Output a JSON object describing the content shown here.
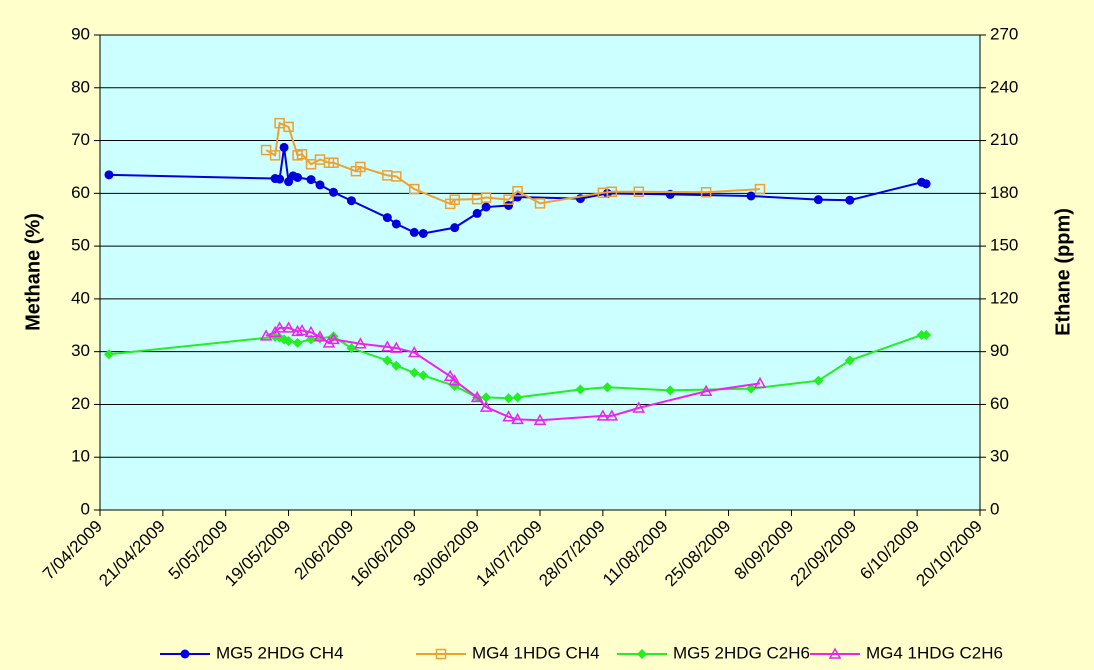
{
  "chart_data": {
    "type": "line",
    "xlim": [
      "2009-04-07",
      "2009-10-20"
    ],
    "xticks": [
      {
        "value": "2009-04-07",
        "label": "7/04/2009"
      },
      {
        "value": "2009-04-21",
        "label": "21/04/2009"
      },
      {
        "value": "2009-05-05",
        "label": "5/05/2009"
      },
      {
        "value": "2009-05-19",
        "label": "19/05/2009"
      },
      {
        "value": "2009-06-02",
        "label": "2/06/2009"
      },
      {
        "value": "2009-06-16",
        "label": "16/06/2009"
      },
      {
        "value": "2009-06-30",
        "label": "30/06/2009"
      },
      {
        "value": "2009-07-14",
        "label": "14/07/2009"
      },
      {
        "value": "2009-07-28",
        "label": "28/07/2009"
      },
      {
        "value": "2009-08-11",
        "label": "11/08/2009"
      },
      {
        "value": "2009-08-25",
        "label": "25/08/2009"
      },
      {
        "value": "2009-09-08",
        "label": "8/09/2009"
      },
      {
        "value": "2009-09-22",
        "label": "22/09/2009"
      },
      {
        "value": "2009-10-06",
        "label": "6/10/2009"
      },
      {
        "value": "2009-10-20",
        "label": "20/10/2009"
      }
    ],
    "ylabel": "Methane (%)",
    "ylim": [
      0,
      90
    ],
    "yticks": [
      0,
      10,
      20,
      30,
      40,
      50,
      60,
      70,
      80,
      90
    ],
    "y2label": "Ethane (ppm)",
    "y2lim": [
      0,
      270
    ],
    "y2ticks": [
      0,
      30,
      60,
      90,
      120,
      150,
      180,
      210,
      240,
      270
    ],
    "grid": true,
    "legend": "bottom",
    "series": [
      {
        "name": "MG5 2HDG CH4",
        "color": "#0000dd",
        "marker": "circle",
        "axis": "y",
        "x": [
          "2009-04-09",
          "2009-05-16",
          "2009-05-17",
          "2009-05-18",
          "2009-05-19",
          "2009-05-20",
          "2009-05-21",
          "2009-05-24",
          "2009-05-26",
          "2009-05-29",
          "2009-06-02",
          "2009-06-10",
          "2009-06-12",
          "2009-06-16",
          "2009-06-18",
          "2009-06-25",
          "2009-06-30",
          "2009-07-02",
          "2009-07-07",
          "2009-07-09",
          "2009-07-23",
          "2009-07-29",
          "2009-08-12",
          "2009-08-30",
          "2009-09-14",
          "2009-09-21",
          "2009-10-07",
          "2009-10-08"
        ],
        "values": [
          63.5,
          62.8,
          62.7,
          68.7,
          62.2,
          63.3,
          63.0,
          62.6,
          61.6,
          60.2,
          58.6,
          55.4,
          54.2,
          52.6,
          52.4,
          53.5,
          56.2,
          57.4,
          57.7,
          59.3,
          59.0,
          60.0,
          59.8,
          59.5,
          58.8,
          58.7,
          62.1,
          61.8
        ]
      },
      {
        "name": "MG4 1HDG CH4",
        "color": "#f0a030",
        "marker": "square",
        "axis": "y",
        "x": [
          "2009-05-14",
          "2009-05-16",
          "2009-05-17",
          "2009-05-19",
          "2009-05-21",
          "2009-05-22",
          "2009-05-24",
          "2009-05-26",
          "2009-05-28",
          "2009-05-29",
          "2009-06-03",
          "2009-06-04",
          "2009-06-10",
          "2009-06-12",
          "2009-06-16",
          "2009-06-24",
          "2009-06-25",
          "2009-06-30",
          "2009-07-02",
          "2009-07-07",
          "2009-07-09",
          "2009-07-14",
          "2009-07-28",
          "2009-07-30",
          "2009-08-05",
          "2009-08-20",
          "2009-09-01"
        ],
        "values": [
          68.2,
          67.2,
          73.3,
          72.6,
          67.2,
          67.4,
          65.5,
          66.4,
          65.8,
          65.8,
          64.2,
          65.0,
          63.4,
          63.2,
          60.8,
          58.0,
          58.8,
          58.9,
          59.2,
          58.8,
          60.4,
          58.1,
          60.1,
          60.3,
          60.3,
          60.2,
          60.8
        ]
      },
      {
        "name": "MG5 2HDG C2H6",
        "color": "#22ee22",
        "marker": "diamond",
        "axis": "y2",
        "x": [
          "2009-04-09",
          "2009-05-16",
          "2009-05-17",
          "2009-05-18",
          "2009-05-19",
          "2009-05-21",
          "2009-05-24",
          "2009-05-26",
          "2009-05-29",
          "2009-06-02",
          "2009-06-10",
          "2009-06-12",
          "2009-06-16",
          "2009-06-18",
          "2009-06-25",
          "2009-06-30",
          "2009-07-02",
          "2009-07-07",
          "2009-07-09",
          "2009-07-23",
          "2009-07-29",
          "2009-08-12",
          "2009-08-30",
          "2009-09-14",
          "2009-09-21",
          "2009-10-07",
          "2009-10-08"
        ],
        "values": [
          88.5,
          98.4,
          98,
          97,
          96,
          95,
          97,
          97.5,
          98.7,
          92,
          85,
          82,
          78,
          76.5,
          70.5,
          64,
          64,
          63.5,
          64,
          68.5,
          69.8,
          68,
          69,
          73.5,
          85,
          99.5,
          99.5
        ]
      },
      {
        "name": "MG4 1HDG C2H6",
        "color": "#ee22ee",
        "marker": "triangle",
        "axis": "y2",
        "x": [
          "2009-05-14",
          "2009-05-16",
          "2009-05-17",
          "2009-05-19",
          "2009-05-21",
          "2009-05-22",
          "2009-05-24",
          "2009-05-26",
          "2009-05-28",
          "2009-05-29",
          "2009-06-04",
          "2009-06-10",
          "2009-06-12",
          "2009-06-16",
          "2009-06-24",
          "2009-06-25",
          "2009-06-30",
          "2009-07-02",
          "2009-07-07",
          "2009-07-09",
          "2009-07-14",
          "2009-07-28",
          "2009-07-30",
          "2009-08-05",
          "2009-08-20",
          "2009-09-01"
        ],
        "values": [
          99,
          101,
          103.5,
          103.5,
          101.5,
          102,
          101,
          98.5,
          95,
          97,
          94.5,
          92.7,
          92,
          89.5,
          76,
          73.5,
          64,
          58.5,
          53,
          51.5,
          51,
          53.5,
          53.5,
          58,
          67.5,
          72
        ]
      }
    ]
  }
}
